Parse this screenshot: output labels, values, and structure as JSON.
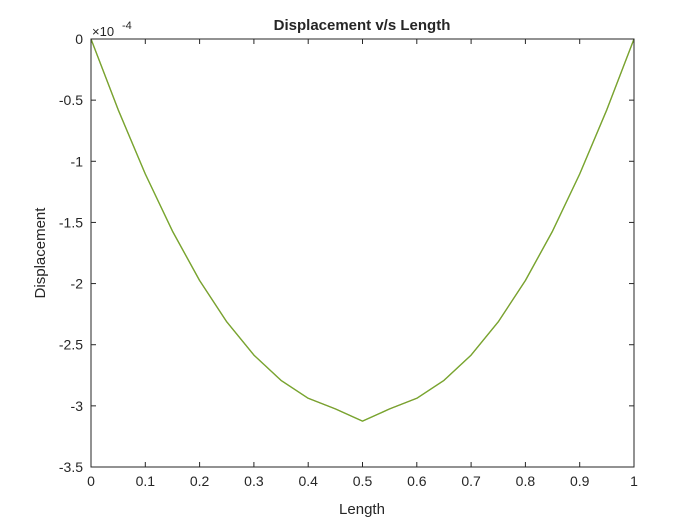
{
  "chart_data": {
    "type": "line",
    "title": "Displacement v/s Length",
    "xlabel": "Length",
    "ylabel": "Displacement",
    "y_multiplier": {
      "base": "×10",
      "exponent": "-4"
    },
    "xlim": [
      0,
      1
    ],
    "ylim": [
      -3.5,
      0
    ],
    "x_ticks": [
      0,
      0.1,
      0.2,
      0.3,
      0.4,
      0.5,
      0.6,
      0.7,
      0.8,
      0.9,
      1
    ],
    "x_tick_labels": [
      "0",
      "0.1",
      "0.2",
      "0.3",
      "0.4",
      "0.5",
      "0.6",
      "0.7",
      "0.8",
      "0.9",
      "1"
    ],
    "y_ticks": [
      0,
      -0.5,
      -1,
      -1.5,
      -2,
      -2.5,
      -3,
      -3.5
    ],
    "y_tick_labels": [
      "0",
      "-0.5",
      "-1",
      "-1.5",
      "-2",
      "-2.5",
      "-3",
      "-3.5"
    ],
    "grid": false,
    "box": true,
    "series": [
      {
        "color": "#77ac30",
        "x": [
          0,
          0.05,
          0.1,
          0.15,
          0.2,
          0.25,
          0.3,
          0.35,
          0.4,
          0.45,
          0.5,
          0.55,
          0.6,
          0.65,
          0.7,
          0.75,
          0.8,
          0.85,
          0.9,
          0.95,
          1
        ],
        "y": [
          0,
          -0.578,
          -1.104,
          -1.571,
          -1.975,
          -2.313,
          -2.585,
          -2.792,
          -2.938,
          -3.025,
          -3.125,
          -3.025,
          -2.938,
          -2.792,
          -2.585,
          -2.313,
          -1.975,
          -1.571,
          -1.104,
          -0.578,
          0
        ]
      },
      {
        "color": "#a2142f",
        "x": [
          0,
          0.05,
          0.1,
          0.15,
          0.2,
          0.25,
          0.3,
          0.35,
          0.4,
          0.45,
          0.5,
          0.55,
          0.6,
          0.65,
          0.7,
          0.75,
          0.8,
          0.85,
          0.9,
          0.95,
          1
        ],
        "y": [
          0,
          -0.578,
          -1.104,
          -1.571,
          -1.975,
          -2.313,
          -2.585,
          -2.792,
          -2.938,
          -3.025,
          -3.125,
          -3.025,
          -2.938,
          -2.792,
          -2.585,
          -2.313,
          -1.975,
          -1.571,
          -1.104,
          -0.578,
          0
        ]
      }
    ]
  }
}
